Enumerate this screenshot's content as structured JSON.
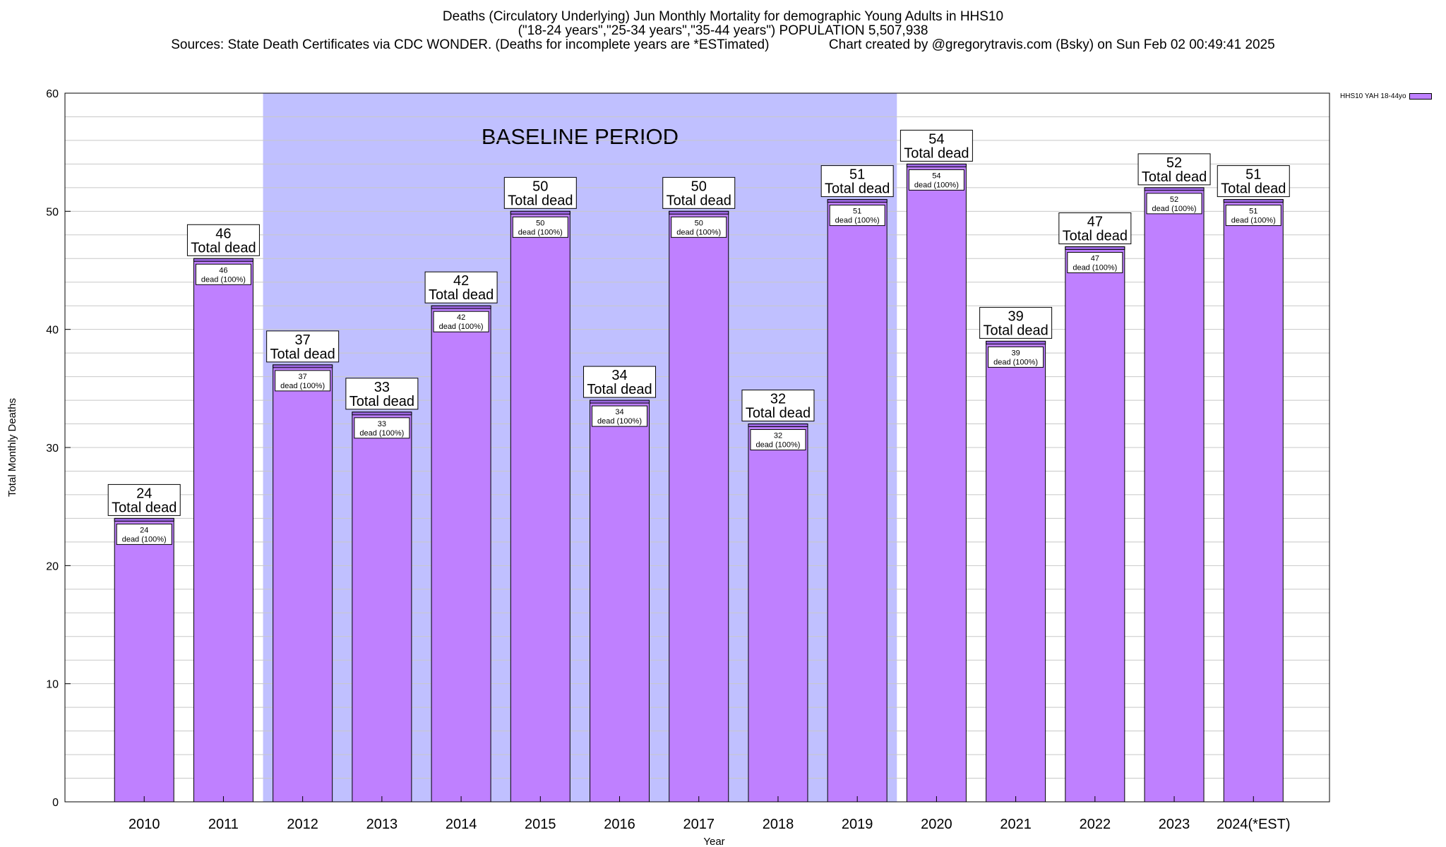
{
  "header": {
    "title_line1": "Deaths (Circulatory Underlying) Jun Monthly Mortality for demographic Young Adults in HHS10",
    "title_line2": "(\"18-24 years\",\"25-34 years\",\"35-44 years\") POPULATION 5,507,938",
    "title_line3_left": "Sources: State Death Certificates via CDC WONDER. (Deaths for incomplete years are *ESTimated)",
    "title_line3_right": "Chart created by @gregorytravis.com (Bsky) on Sun Feb 02 00:49:41 2025"
  },
  "legend": {
    "label": "HHS10 YAH 18-44yo"
  },
  "colors": {
    "bar": "#bf80ff",
    "bar_top": "#9a66e0",
    "baseline": "#c0c0ff",
    "grid": "#c8c8c8"
  },
  "chart_data": {
    "type": "bar",
    "xlabel": "Year",
    "ylabel": "Total Monthly Deaths",
    "ylim": [
      0,
      60
    ],
    "yticks": [
      0,
      10,
      20,
      30,
      40,
      50,
      60
    ],
    "grid": true,
    "legend_position": "top-right",
    "categories": [
      "2010",
      "2011",
      "2012",
      "2013",
      "2014",
      "2015",
      "2016",
      "2017",
      "2018",
      "2019",
      "2020",
      "2021",
      "2022",
      "2023",
      "2024(*EST)"
    ],
    "series": [
      {
        "name": "HHS10 YAH 18-44yo",
        "values": [
          24,
          46,
          37,
          33,
          42,
          50,
          34,
          50,
          32,
          51,
          54,
          39,
          47,
          52,
          51
        ]
      }
    ],
    "total_label": "Total dead",
    "inner_label": "dead (100%)",
    "annotations": [
      {
        "text": "BASELINE PERIOD",
        "from_category": "2012",
        "to_category": "2019"
      }
    ]
  }
}
